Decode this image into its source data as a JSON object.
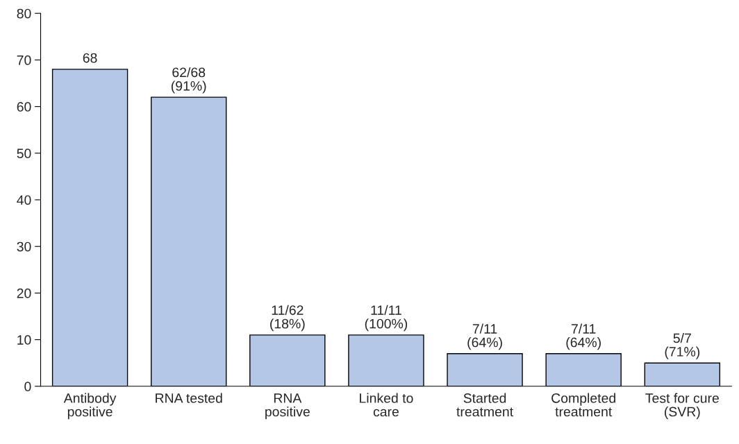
{
  "chart_data": {
    "type": "bar",
    "categories": [
      "Antibody\npositive",
      "RNA tested",
      "RNA\npositive",
      "Linked to\ncare",
      "Started\ntreatment",
      "Completed\ntreatment",
      "Test for cure\n(SVR)"
    ],
    "values": [
      68,
      62,
      11,
      11,
      7,
      7,
      5
    ],
    "value_labels": [
      "68",
      "62/68\n(91%)",
      "11/62\n(18%)",
      "11/11\n(100%)",
      "7/11\n(64%)",
      "7/11\n(64%)",
      "5/7\n(71%)"
    ],
    "color": "#b4c7e7",
    "ylim": [
      0,
      80
    ],
    "yticks": [
      0,
      10,
      20,
      30,
      40,
      50,
      60,
      70,
      80
    ],
    "grid": false,
    "legend": false
  }
}
